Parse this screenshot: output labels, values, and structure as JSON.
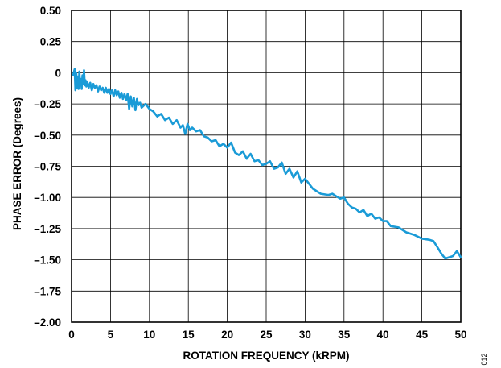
{
  "chart_data": {
    "type": "line",
    "title": "",
    "xlabel": "ROTATION FREQUENCY (kRPM)",
    "ylabel": "PHASE ERROR (Degrees)",
    "xlim": [
      0,
      50
    ],
    "ylim": [
      -2.0,
      0.5
    ],
    "grid": true,
    "x_ticks": [
      0,
      5,
      10,
      15,
      20,
      25,
      30,
      35,
      40,
      45,
      50
    ],
    "x_tick_labels": [
      "0",
      "5",
      "10",
      "15",
      "20",
      "25",
      "30",
      "35",
      "40",
      "45",
      "50"
    ],
    "y_ticks": [
      0.5,
      0.25,
      0,
      -0.25,
      -0.5,
      -0.75,
      -1.0,
      -1.25,
      -1.5,
      -1.75,
      -2.0
    ],
    "y_tick_labels": [
      "0.50",
      "0.25",
      "0",
      "–0.25",
      "–0.50",
      "–0.75",
      "–1.00",
      "–1.25",
      "–1.50",
      "–1.75",
      "–2.00"
    ],
    "series": [
      {
        "color": "#1a9bd7",
        "x": [
          0.2,
          0.4,
          0.5,
          0.6,
          0.7,
          0.8,
          0.9,
          1.0,
          1.1,
          1.2,
          1.3,
          1.4,
          1.5,
          1.6,
          1.7,
          1.8,
          1.9,
          2.0,
          2.2,
          2.4,
          2.6,
          2.8,
          3.0,
          3.2,
          3.4,
          3.6,
          3.8,
          4.0,
          4.2,
          4.4,
          4.6,
          4.8,
          5.0,
          5.2,
          5.4,
          5.6,
          5.8,
          6.0,
          6.2,
          6.4,
          6.6,
          6.8,
          7.0,
          7.2,
          7.4,
          7.6,
          7.8,
          8.0,
          8.2,
          8.4,
          8.6,
          8.8,
          9.0,
          9.5,
          10.0,
          10.5,
          11.0,
          11.5,
          12.0,
          12.5,
          13.0,
          13.5,
          14.0,
          14.3,
          14.6,
          14.9,
          15.2,
          15.5,
          16.0,
          16.5,
          17.0,
          17.5,
          18.0,
          18.5,
          19.0,
          19.5,
          20.0,
          20.5,
          21.0,
          21.5,
          22.0,
          22.5,
          23.0,
          23.5,
          24.0,
          24.5,
          25.0,
          25.5,
          26.0,
          26.5,
          27.0,
          27.5,
          28.0,
          28.5,
          29.0,
          29.5,
          30.0,
          31.0,
          32.0,
          33.0,
          33.5,
          34.0,
          34.5,
          35.0,
          35.5,
          36.0,
          36.5,
          37.0,
          37.5,
          38.0,
          38.5,
          39.0,
          39.5,
          40.0,
          40.5,
          41.0,
          42.0,
          43.0,
          44.0,
          45.0,
          46.0,
          46.5,
          47.0,
          47.5,
          48.0,
          49.0,
          49.5,
          50.0
        ],
        "y": [
          -0.02,
          0.03,
          -0.14,
          0.0,
          -0.12,
          -0.03,
          -0.13,
          0.01,
          -0.1,
          -0.05,
          -0.13,
          -0.02,
          -0.09,
          0.02,
          -0.1,
          -0.06,
          -0.11,
          -0.07,
          -0.12,
          -0.08,
          -0.14,
          -0.09,
          -0.12,
          -0.1,
          -0.15,
          -0.11,
          -0.14,
          -0.12,
          -0.16,
          -0.12,
          -0.16,
          -0.13,
          -0.17,
          -0.14,
          -0.19,
          -0.14,
          -0.18,
          -0.15,
          -0.2,
          -0.16,
          -0.21,
          -0.17,
          -0.22,
          -0.17,
          -0.29,
          -0.19,
          -0.27,
          -0.2,
          -0.3,
          -0.21,
          -0.26,
          -0.24,
          -0.28,
          -0.25,
          -0.29,
          -0.31,
          -0.35,
          -0.33,
          -0.38,
          -0.36,
          -0.41,
          -0.38,
          -0.44,
          -0.42,
          -0.49,
          -0.41,
          -0.46,
          -0.44,
          -0.47,
          -0.46,
          -0.51,
          -0.52,
          -0.55,
          -0.54,
          -0.59,
          -0.57,
          -0.6,
          -0.56,
          -0.64,
          -0.66,
          -0.63,
          -0.69,
          -0.65,
          -0.71,
          -0.7,
          -0.74,
          -0.73,
          -0.71,
          -0.77,
          -0.76,
          -0.72,
          -0.81,
          -0.77,
          -0.84,
          -0.79,
          -0.88,
          -0.85,
          -0.93,
          -0.97,
          -0.98,
          -0.97,
          -0.99,
          -1.01,
          -1.0,
          -1.05,
          -1.08,
          -1.09,
          -1.12,
          -1.1,
          -1.15,
          -1.13,
          -1.17,
          -1.16,
          -1.19,
          -1.19,
          -1.23,
          -1.24,
          -1.28,
          -1.3,
          -1.33,
          -1.34,
          -1.35,
          -1.4,
          -1.45,
          -1.49,
          -1.47,
          -1.43,
          -1.48
        ]
      }
    ]
  },
  "figure_id": "012"
}
